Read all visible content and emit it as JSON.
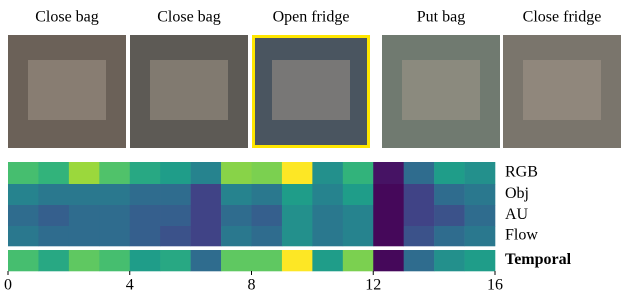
{
  "frames": [
    {
      "caption": "Close bag",
      "highlight": false
    },
    {
      "caption": "Close bag",
      "highlight": false
    },
    {
      "caption": "Open fridge",
      "highlight": true
    },
    {
      "caption": "Put bag",
      "highlight": false
    },
    {
      "caption": "Close fridge",
      "highlight": false
    }
  ],
  "chart_data": {
    "type": "heatmap",
    "colormap": "viridis",
    "zlim": [
      0,
      1
    ],
    "xlim": [
      0,
      16
    ],
    "xticks": [
      0,
      4,
      8,
      12,
      16
    ],
    "series": [
      {
        "name": "RGB",
        "values": [
          0.7,
          0.65,
          0.85,
          0.72,
          0.6,
          0.55,
          0.45,
          0.82,
          0.8,
          1.0,
          0.5,
          0.65,
          0.05,
          0.35,
          0.55,
          0.5
        ]
      },
      {
        "name": "Obj",
        "values": [
          0.45,
          0.4,
          0.4,
          0.4,
          0.35,
          0.35,
          0.2,
          0.45,
          0.4,
          0.55,
          0.45,
          0.55,
          0.02,
          0.2,
          0.35,
          0.4
        ]
      },
      {
        "name": "AU",
        "values": [
          0.35,
          0.3,
          0.35,
          0.35,
          0.3,
          0.3,
          0.2,
          0.35,
          0.3,
          0.5,
          0.4,
          0.45,
          0.02,
          0.2,
          0.25,
          0.35
        ]
      },
      {
        "name": "Flow",
        "values": [
          0.4,
          0.35,
          0.35,
          0.35,
          0.3,
          0.25,
          0.2,
          0.4,
          0.35,
          0.5,
          0.4,
          0.45,
          0.02,
          0.25,
          0.35,
          0.4
        ]
      },
      {
        "name": "Temporal",
        "values": [
          0.7,
          0.6,
          0.75,
          0.7,
          0.55,
          0.6,
          0.35,
          0.75,
          0.75,
          1.0,
          0.55,
          0.8,
          0.02,
          0.35,
          0.5,
          0.55
        ]
      }
    ]
  }
}
